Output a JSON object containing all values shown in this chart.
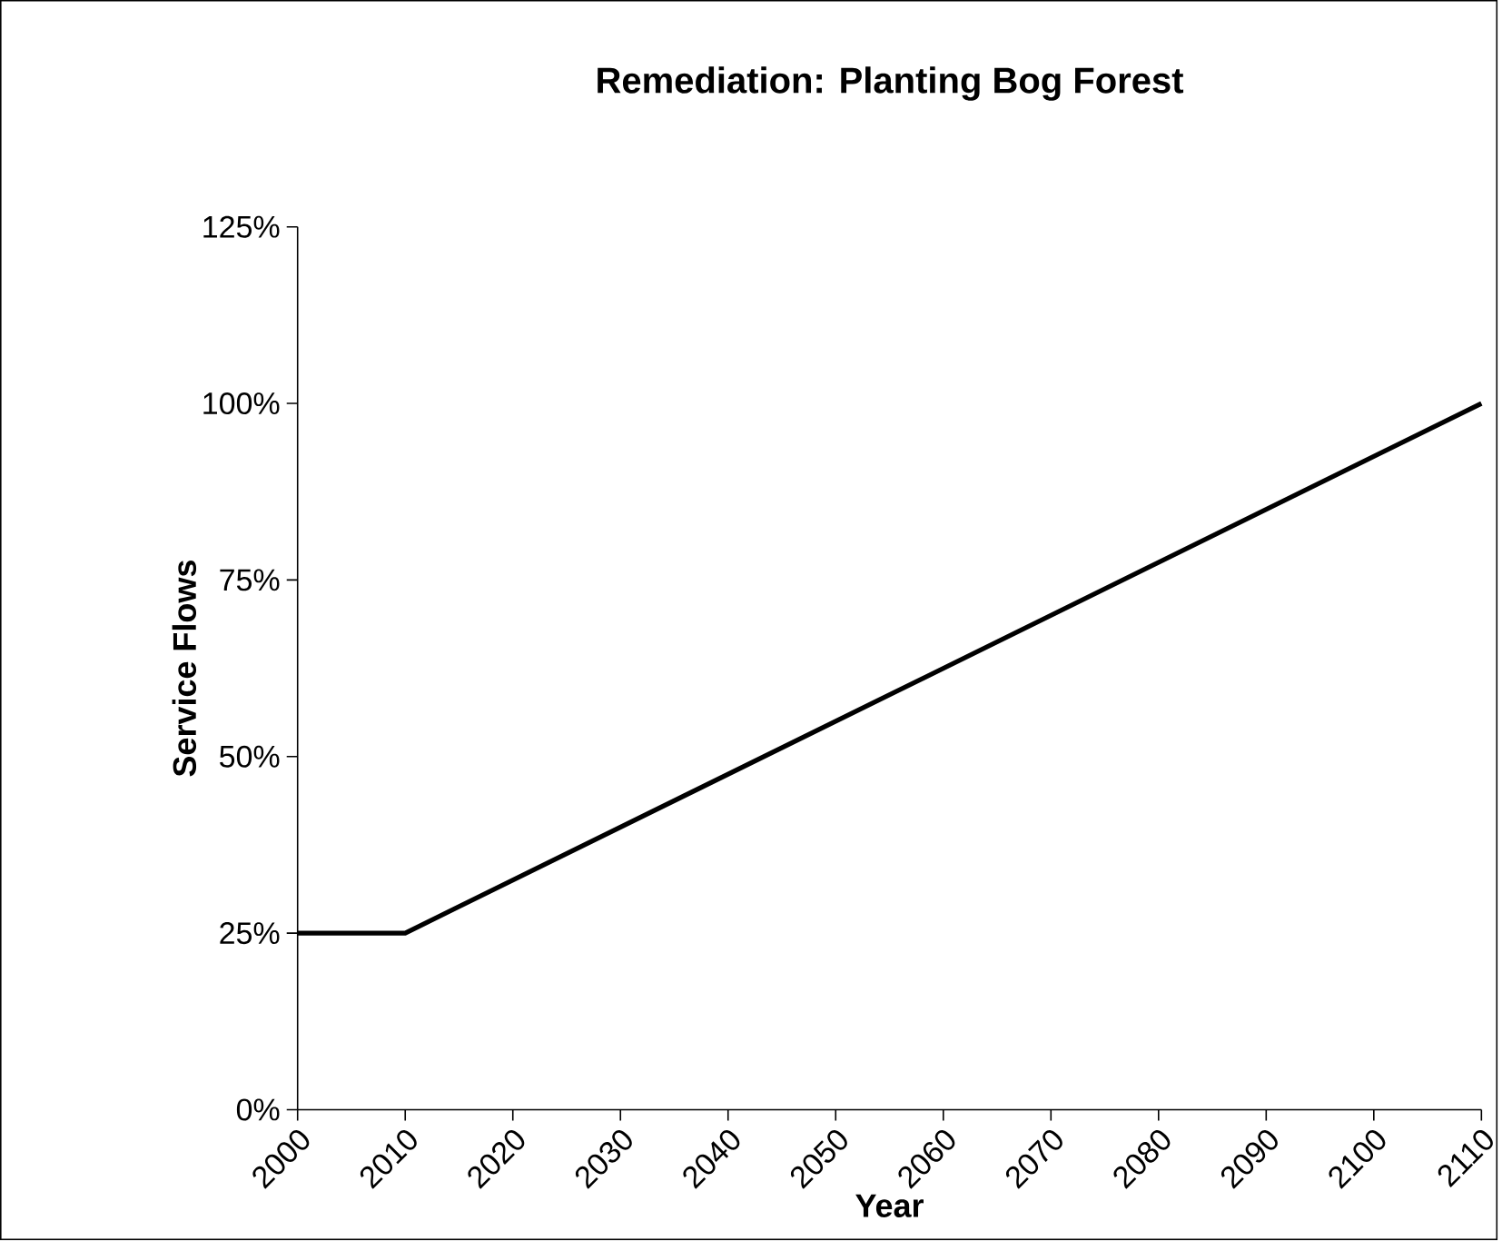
{
  "chart_data": {
    "type": "line",
    "title": "Remediation: Planting Bog Forest",
    "xlabel": "Year",
    "ylabel": "Service Flows",
    "x": [
      2000,
      2010,
      2110
    ],
    "series": [
      {
        "color": "#000000",
        "values": [
          25,
          25,
          100
        ]
      }
    ],
    "xlim": [
      2000,
      2110
    ],
    "xticks": [
      2000,
      2010,
      2020,
      2030,
      2040,
      2050,
      2060,
      2070,
      2080,
      2090,
      2100,
      2110
    ],
    "ylim": [
      0,
      125
    ],
    "yticks": [
      {
        "value": 0,
        "label": "0%"
      },
      {
        "value": 25,
        "label": "25%"
      },
      {
        "value": 50,
        "label": "50%"
      },
      {
        "value": 75,
        "label": "75%"
      },
      {
        "value": 100,
        "label": "100%"
      },
      {
        "value": 125,
        "label": "125%"
      }
    ]
  }
}
